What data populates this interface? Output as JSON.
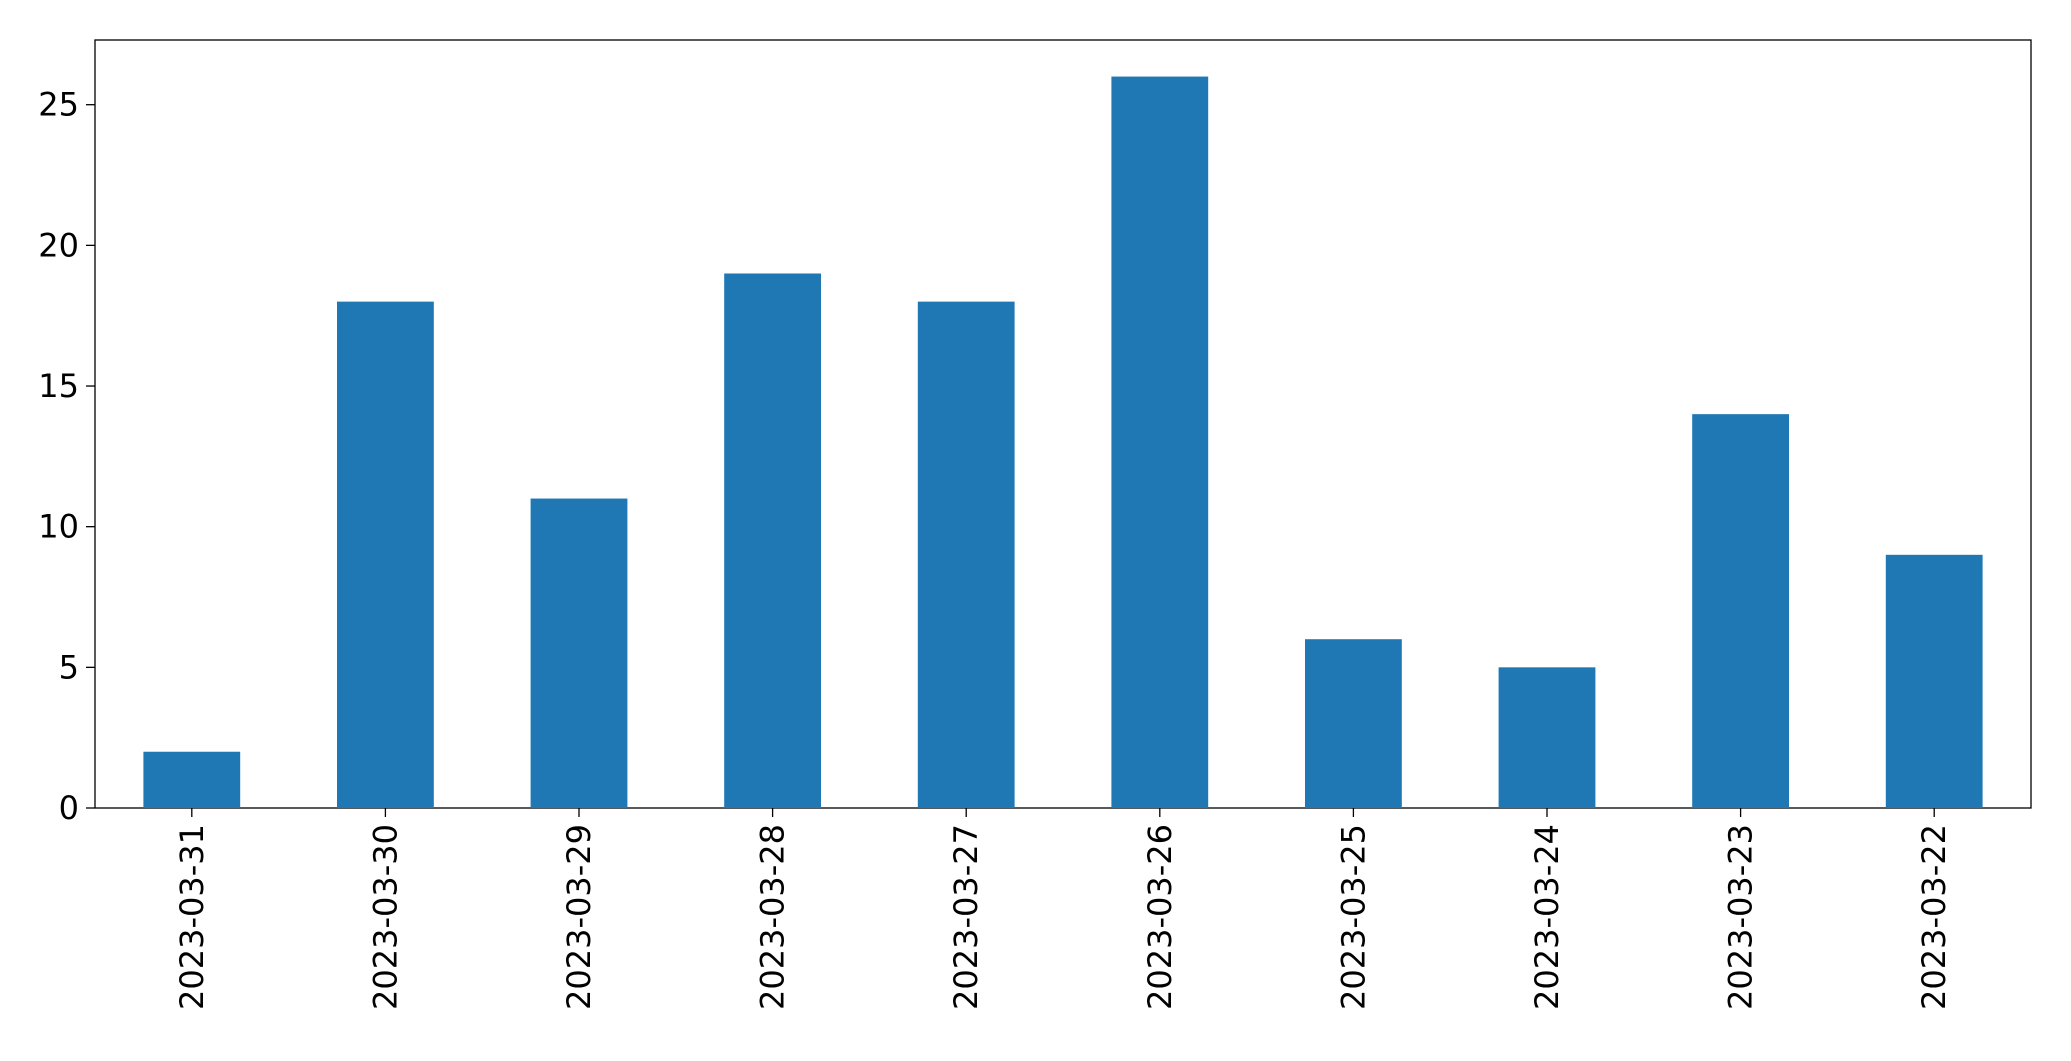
{
  "chart_data": {
    "type": "bar",
    "categories": [
      "2023-03-31",
      "2023-03-30",
      "2023-03-29",
      "2023-03-28",
      "2023-03-27",
      "2023-03-26",
      "2023-03-25",
      "2023-03-24",
      "2023-03-23",
      "2023-03-22"
    ],
    "values": [
      2,
      18,
      11,
      19,
      18,
      26,
      6,
      5,
      14,
      9
    ],
    "color": "#1f77b4",
    "ylim": [
      0,
      27.3
    ],
    "yticks": [
      0,
      5,
      10,
      15,
      20,
      25
    ],
    "grid": false
  }
}
